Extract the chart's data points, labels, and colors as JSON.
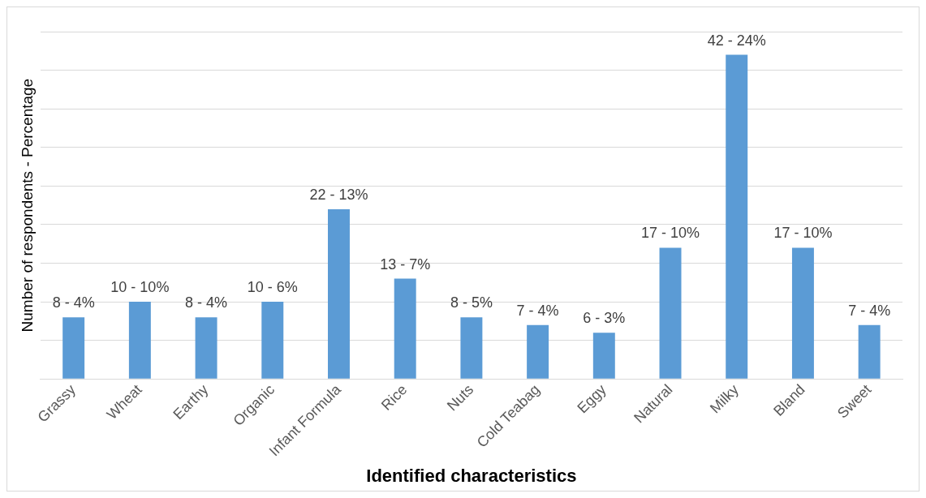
{
  "chart_data": {
    "type": "bar",
    "xlabel": "Identified characteristics",
    "ylabel": "Number of respondents - Percentage",
    "categories": [
      "Grassy",
      "Wheat",
      "Earthy",
      "Organic",
      "Infant Formula",
      "Rice",
      "Nuts",
      "Cold Teabag",
      "Eggy",
      "Natural",
      "Milky",
      "Bland",
      "Sweet"
    ],
    "values": [
      8,
      10,
      8,
      10,
      22,
      13,
      8,
      7,
      6,
      17,
      42,
      17,
      7
    ],
    "value_labels": [
      "8 - 4%",
      "10 - 10%",
      "8 - 4%",
      "10 - 6%",
      "22 - 13%",
      "13 - 7%",
      "8 - 5%",
      "7 - 4%",
      "6 - 3%",
      "17 - 10%",
      "42 - 24%",
      "17 - 10%",
      "7 - 4%"
    ],
    "color": "#5b9bd5",
    "ylim": [
      0,
      45
    ],
    "yticks": [
      {
        "value": 0,
        "label": null
      },
      {
        "value": 5,
        "label": null
      },
      {
        "value": 10,
        "label": null
      },
      {
        "value": 15,
        "label": null
      },
      {
        "value": 20,
        "label": null
      },
      {
        "value": 25,
        "label": null
      },
      {
        "value": 30,
        "label": null
      },
      {
        "value": 35,
        "label": null
      },
      {
        "value": 40,
        "label": null
      },
      {
        "value": 45,
        "label": null
      }
    ],
    "grid": "y",
    "tick_labels": "x",
    "legend": false
  }
}
